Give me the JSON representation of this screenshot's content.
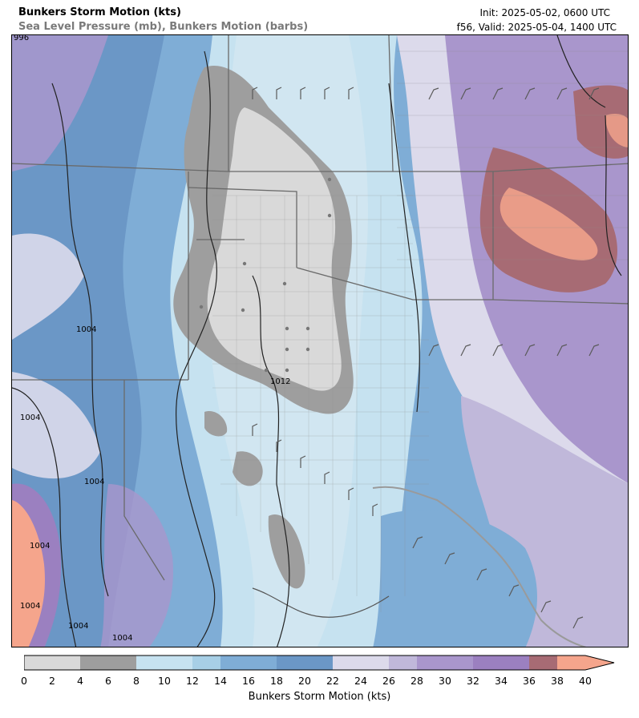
{
  "header": {
    "title": "Bunkers Storm Motion (kts)",
    "subtitle": "Sea Level Pressure (mb), Bunkers Motion (barbs)",
    "init": "Init: 2025-05-02, 0600 UTC",
    "valid": "f56, Valid: 2025-05-04, 1400 UTC"
  },
  "colorbar": {
    "label": "Bunkers Storm Motion (kts)",
    "ticks": [
      "0",
      "2",
      "4",
      "6",
      "8",
      "10",
      "12",
      "14",
      "16",
      "18",
      "20",
      "22",
      "24",
      "26",
      "28",
      "30",
      "32",
      "34",
      "36",
      "38",
      "40"
    ],
    "bands": [
      {
        "from": 0,
        "to": 4,
        "color": "#d9d9d9"
      },
      {
        "from": 4,
        "to": 8,
        "color": "#9e9e9e"
      },
      {
        "from": 8,
        "to": 12,
        "color": "#c6e2f0"
      },
      {
        "from": 12,
        "to": 14,
        "color": "#a7cfe6"
      },
      {
        "from": 14,
        "to": 18,
        "color": "#7fadd6"
      },
      {
        "from": 18,
        "to": 22,
        "color": "#6b97c6"
      },
      {
        "from": 22,
        "to": 26,
        "color": "#dcdaeb"
      },
      {
        "from": 26,
        "to": 28,
        "color": "#c0b8da"
      },
      {
        "from": 28,
        "to": 32,
        "color": "#a996cc"
      },
      {
        "from": 32,
        "to": 36,
        "color": "#9b80c0"
      },
      {
        "from": 36,
        "to": 38,
        "color": "#a76b74"
      },
      {
        "from": 38,
        "to": 40,
        "color": "#f5a58c"
      }
    ]
  },
  "isobar_labels": [
    "996",
    "1012",
    "1004",
    "1004",
    "1004",
    "1004",
    "1004",
    "1004",
    "1004"
  ]
}
